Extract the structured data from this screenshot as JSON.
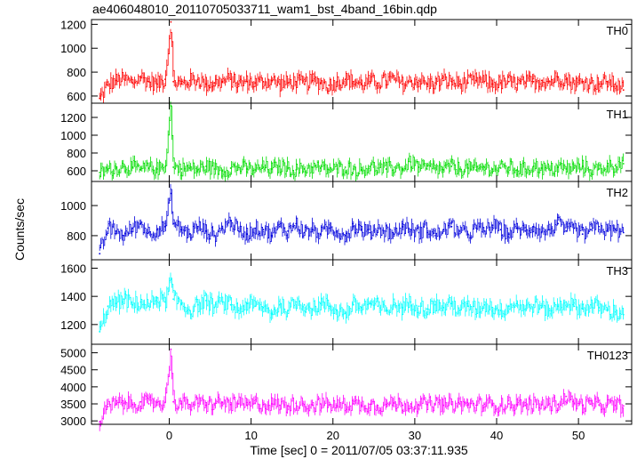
{
  "chart_data": {
    "type": "line",
    "title": "ae406048010_20110705033711_wam1_bst_4band_16bin.qdp",
    "xlabel": "Time [sec] 0 = 2011/07/05 03:37:11.935",
    "ylabel": "Counts/sec",
    "xlim": [
      -9.5,
      56.5
    ],
    "x_ticks": [
      0,
      10,
      20,
      30,
      40,
      50
    ],
    "x_tick_labels": [
      "0",
      "10",
      "20",
      "30",
      "40",
      "50"
    ],
    "panels": [
      {
        "name": "TH0",
        "color": "#ff0000",
        "ylim": [
          540,
          1240
        ],
        "y_ticks": [
          600,
          800,
          1000,
          1200
        ],
        "y_tick_labels": [
          "600",
          "800",
          "1000",
          "1200"
        ],
        "series": {
          "x": [
            -8.5,
            -7.5,
            -6.5,
            -5.5,
            -4.5,
            -3.5,
            -2.5,
            -1.5,
            -0.5,
            0.2,
            0.5,
            1.5,
            2.5,
            3.5,
            4.5,
            5.5,
            6.5,
            7.5,
            8.5,
            9.5,
            10.5,
            11.5,
            12.5,
            13.5,
            14.5,
            15.5,
            16.5,
            17.5,
            18.5,
            19.5,
            20.5,
            21.5,
            22.5,
            23.5,
            24.5,
            25.5,
            26.5,
            27.5,
            28.5,
            29.5,
            30.5,
            31.5,
            32.5,
            33.5,
            34.5,
            35.5,
            36.5,
            37.5,
            38.5,
            39.5,
            40.5,
            41.5,
            42.5,
            43.5,
            44.5,
            45.5,
            46.5,
            47.5,
            48.5,
            49.5,
            50.5,
            51.5,
            52.5,
            53.5,
            54.5,
            55.5
          ],
          "values": [
            580,
            690,
            730,
            740,
            710,
            760,
            720,
            700,
            740,
            1220,
            720,
            700,
            730,
            740,
            700,
            710,
            720,
            740,
            700,
            720,
            710,
            720,
            730,
            700,
            710,
            720,
            700,
            730,
            710,
            690,
            720,
            740,
            720,
            700,
            720,
            710,
            730,
            740,
            700,
            720,
            730,
            700,
            710,
            730,
            720,
            700,
            710,
            730,
            720,
            700,
            710,
            720,
            700,
            710,
            720,
            730,
            720,
            760,
            740,
            700,
            720,
            710,
            700,
            720,
            700,
            650
          ]
        }
      },
      {
        "name": "TH1",
        "color": "#00dd00",
        "ylim": [
          480,
          1360
        ],
        "y_ticks": [
          600,
          800,
          1000,
          1200
        ],
        "y_tick_labels": [
          "600",
          "800",
          "1000",
          "1200"
        ],
        "series": {
          "x": [
            -8.5,
            -7.5,
            -6.5,
            -5.5,
            -4.5,
            -3.5,
            -2.5,
            -1.5,
            -0.5,
            0.2,
            0.5,
            1.5,
            2.5,
            3.5,
            4.5,
            5.5,
            6.5,
            7.5,
            8.5,
            9.5,
            10.5,
            11.5,
            12.5,
            13.5,
            14.5,
            15.5,
            16.5,
            17.5,
            18.5,
            19.5,
            20.5,
            21.5,
            22.5,
            23.5,
            24.5,
            25.5,
            26.5,
            27.5,
            28.5,
            29.5,
            30.5,
            31.5,
            32.5,
            33.5,
            34.5,
            35.5,
            36.5,
            37.5,
            38.5,
            39.5,
            40.5,
            41.5,
            42.5,
            43.5,
            44.5,
            45.5,
            46.5,
            47.5,
            48.5,
            49.5,
            50.5,
            51.5,
            52.5,
            53.5,
            54.5,
            55.5
          ],
          "values": [
            580,
            610,
            630,
            650,
            640,
            610,
            630,
            620,
            650,
            1330,
            640,
            620,
            630,
            610,
            650,
            620,
            600,
            630,
            640,
            620,
            610,
            640,
            620,
            650,
            630,
            610,
            620,
            640,
            630,
            610,
            620,
            640,
            620,
            610,
            650,
            630,
            620,
            640,
            620,
            700,
            640,
            620,
            630,
            610,
            650,
            620,
            630,
            610,
            640,
            620,
            630,
            640,
            610,
            620,
            650,
            630,
            610,
            640,
            620,
            630,
            650,
            610,
            620,
            650,
            660,
            680
          ]
        }
      },
      {
        "name": "TH2",
        "color": "#0000dd",
        "ylim": [
          640,
          1160
        ],
        "y_ticks": [
          800,
          1000
        ],
        "y_tick_labels": [
          "800",
          "1000"
        ],
        "series": {
          "x": [
            -8.5,
            -7.5,
            -6.5,
            -5.5,
            -4.5,
            -3.5,
            -2.5,
            -1.5,
            -0.5,
            0.2,
            0.5,
            1.5,
            2.5,
            3.5,
            4.5,
            5.5,
            6.5,
            7.5,
            8.5,
            9.5,
            10.5,
            11.5,
            12.5,
            13.5,
            14.5,
            15.5,
            16.5,
            17.5,
            18.5,
            19.5,
            20.5,
            21.5,
            22.5,
            23.5,
            24.5,
            25.5,
            26.5,
            27.5,
            28.5,
            29.5,
            30.5,
            31.5,
            32.5,
            33.5,
            34.5,
            35.5,
            36.5,
            37.5,
            38.5,
            39.5,
            40.5,
            41.5,
            42.5,
            43.5,
            44.5,
            45.5,
            46.5,
            47.5,
            48.5,
            49.5,
            50.5,
            51.5,
            52.5,
            53.5,
            54.5,
            55.5
          ],
          "values": [
            680,
            850,
            830,
            800,
            850,
            880,
            820,
            840,
            860,
            1080,
            880,
            840,
            810,
            860,
            830,
            800,
            850,
            900,
            830,
            810,
            850,
            840,
            800,
            860,
            830,
            880,
            820,
            840,
            810,
            850,
            830,
            800,
            860,
            840,
            820,
            850,
            830,
            810,
            860,
            840,
            820,
            850,
            800,
            840,
            860,
            830,
            810,
            850,
            830,
            870,
            840,
            810,
            850,
            830,
            860,
            820,
            840,
            880,
            830,
            850,
            810,
            840,
            860,
            830,
            840,
            820
          ]
        }
      },
      {
        "name": "TH3",
        "color": "#00ffff",
        "ylim": [
          1060,
          1660
        ],
        "y_ticks": [
          1200,
          1400,
          1600
        ],
        "y_tick_labels": [
          "1200",
          "1400",
          "1600"
        ],
        "series": {
          "x": [
            -8.5,
            -7.5,
            -6.5,
            -5.5,
            -4.5,
            -3.5,
            -2.5,
            -1.5,
            -0.5,
            0.2,
            0.5,
            1.5,
            2.5,
            3.5,
            4.5,
            5.5,
            6.5,
            7.5,
            8.5,
            9.5,
            10.5,
            11.5,
            12.5,
            13.5,
            14.5,
            15.5,
            16.5,
            17.5,
            18.5,
            19.5,
            20.5,
            21.5,
            22.5,
            23.5,
            24.5,
            25.5,
            26.5,
            27.5,
            28.5,
            29.5,
            30.5,
            31.5,
            32.5,
            33.5,
            34.5,
            35.5,
            36.5,
            37.5,
            38.5,
            39.5,
            40.5,
            41.5,
            42.5,
            43.5,
            44.5,
            45.5,
            46.5,
            47.5,
            48.5,
            49.5,
            50.5,
            51.5,
            52.5,
            53.5,
            54.5,
            55.5
          ],
          "values": [
            1150,
            1330,
            1350,
            1380,
            1340,
            1360,
            1330,
            1390,
            1360,
            1520,
            1380,
            1350,
            1300,
            1340,
            1370,
            1320,
            1360,
            1340,
            1300,
            1350,
            1330,
            1320,
            1280,
            1340,
            1300,
            1360,
            1340,
            1310,
            1350,
            1330,
            1300,
            1280,
            1340,
            1320,
            1350,
            1330,
            1300,
            1340,
            1320,
            1360,
            1330,
            1310,
            1340,
            1320,
            1350,
            1300,
            1330,
            1310,
            1340,
            1320,
            1300,
            1330,
            1350,
            1310,
            1340,
            1320,
            1300,
            1330,
            1360,
            1330,
            1310,
            1340,
            1320,
            1300,
            1290,
            1270
          ]
        }
      },
      {
        "name": "TH0123",
        "color": "#ff00ff",
        "ylim": [
          2900,
          5250
        ],
        "y_ticks": [
          3000,
          3500,
          4000,
          4500,
          5000
        ],
        "y_tick_labels": [
          "3000",
          "3500",
          "4000",
          "4500",
          "5000"
        ],
        "series": {
          "x": [
            -8.5,
            -7.5,
            -6.5,
            -5.5,
            -4.5,
            -3.5,
            -2.5,
            -1.5,
            -0.5,
            0.2,
            0.5,
            1.5,
            2.5,
            3.5,
            4.5,
            5.5,
            6.5,
            7.5,
            8.5,
            9.5,
            10.5,
            11.5,
            12.5,
            13.5,
            14.5,
            15.5,
            16.5,
            17.5,
            18.5,
            19.5,
            20.5,
            21.5,
            22.5,
            23.5,
            24.5,
            25.5,
            26.5,
            27.5,
            28.5,
            29.5,
            30.5,
            31.5,
            32.5,
            33.5,
            34.5,
            35.5,
            36.5,
            37.5,
            38.5,
            39.5,
            40.5,
            41.5,
            42.5,
            43.5,
            44.5,
            45.5,
            46.5,
            47.5,
            48.5,
            49.5,
            50.5,
            51.5,
            52.5,
            53.5,
            54.5,
            55.5
          ],
          "values": [
            2980,
            3420,
            3500,
            3520,
            3480,
            3560,
            3500,
            3550,
            3540,
            5100,
            3560,
            3500,
            3480,
            3520,
            3460,
            3500,
            3540,
            3480,
            3500,
            3460,
            3520,
            3480,
            3500,
            3460,
            3440,
            3520,
            3480,
            3460,
            3500,
            3470,
            3440,
            3480,
            3500,
            3460,
            3490,
            3450,
            3480,
            3520,
            3460,
            3500,
            3470,
            3480,
            3500,
            3460,
            3480,
            3500,
            3470,
            3460,
            3490,
            3470,
            3460,
            3500,
            3480,
            3460,
            3490,
            3470,
            3500,
            3480,
            3720,
            3520,
            3460,
            3490,
            3470,
            3460,
            3450,
            3440
          ]
        }
      }
    ]
  }
}
